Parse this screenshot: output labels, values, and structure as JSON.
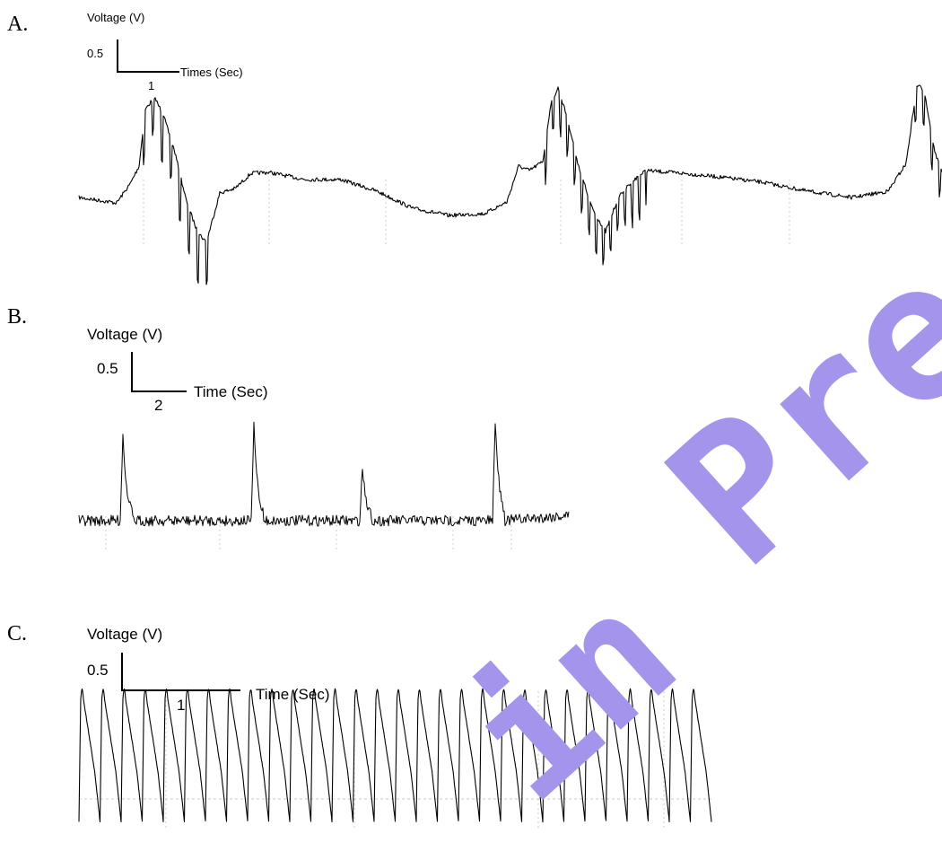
{
  "chart_data": [
    {
      "type": "line",
      "panel_label": "A.",
      "scale_bar": {
        "voltage_label": "Voltage (V)",
        "voltage_value": "0.5",
        "time_label": "Times (Sec)",
        "time_value": "1"
      },
      "trace": {
        "pattern": "burst",
        "line_color": "#000000",
        "events": 3
      }
    },
    {
      "type": "line",
      "panel_label": "B.",
      "scale_bar": {
        "voltage_label": "Voltage (V)",
        "voltage_value": "0.5",
        "time_label": "Time (Sec)",
        "time_value": "2"
      },
      "trace": {
        "pattern": "spike",
        "line_color": "#000000",
        "events": 4
      }
    },
    {
      "type": "line",
      "panel_label": "C.",
      "scale_bar": {
        "voltage_label": "Voltage (V)",
        "voltage_value": "0.5",
        "time_label": "Time (Sec)",
        "time_value": "1"
      },
      "trace": {
        "pattern": "oscillation",
        "line_color": "#000000",
        "cycles": 30
      }
    }
  ],
  "watermark": {
    "text_1": "Pre",
    "text_2": "in",
    "color": "#a594ec"
  }
}
